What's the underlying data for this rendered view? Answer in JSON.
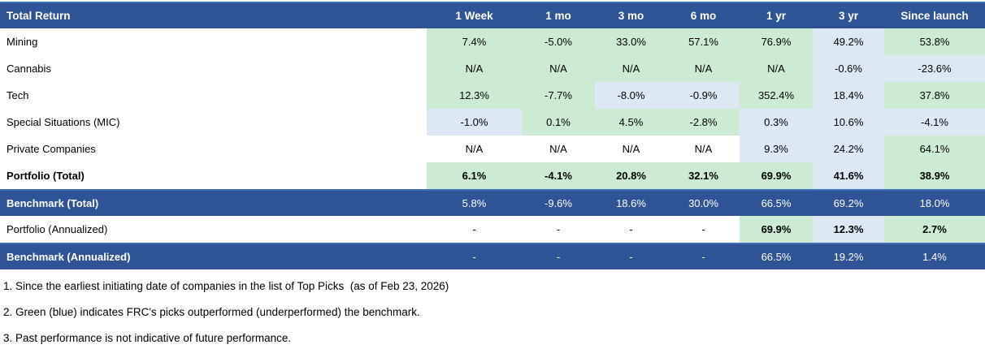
{
  "colors": {
    "header_bg": "#2F5496",
    "accent_line": "#3E6DBA",
    "green": "#CBEBD2",
    "blue": "#DCE9F5",
    "text_light": "#FFFFFF",
    "text_dark": "#000000"
  },
  "table": {
    "title": "Total Return",
    "columns": [
      "1 Week",
      "1 mo",
      "3 mo",
      "6 mo",
      "1 yr",
      "3 yr",
      "Since launch"
    ],
    "rows": [
      {
        "label": "Mining",
        "label_bold": false,
        "dark": false,
        "values": [
          "7.4%",
          "-5.0%",
          "33.0%",
          "57.1%",
          "76.9%",
          "49.2%",
          "53.8%"
        ],
        "fills": [
          "g",
          "g",
          "g",
          "g",
          "g",
          "b",
          "g"
        ]
      },
      {
        "label": "Cannabis",
        "label_bold": false,
        "dark": false,
        "values": [
          "N/A",
          "N/A",
          "N/A",
          "N/A",
          "N/A",
          "-0.6%",
          "-23.6%"
        ],
        "fills": [
          "g",
          "g",
          "g",
          "g",
          "g",
          "b",
          "b"
        ]
      },
      {
        "label": "Tech",
        "label_bold": false,
        "dark": false,
        "values": [
          "12.3%",
          "-7.7%",
          "-8.0%",
          "-0.9%",
          "352.4%",
          "18.4%",
          "37.8%"
        ],
        "fills": [
          "g",
          "g",
          "b",
          "b",
          "g",
          "b",
          "g"
        ]
      },
      {
        "label": "Special Situations (MIC)",
        "label_bold": false,
        "dark": false,
        "values": [
          "-1.0%",
          "0.1%",
          "4.5%",
          "-2.8%",
          "0.3%",
          "10.6%",
          "-4.1%"
        ],
        "fills": [
          "b",
          "g",
          "g",
          "g",
          "b",
          "b",
          "b"
        ]
      },
      {
        "label": "Private Companies",
        "label_bold": false,
        "dark": false,
        "values": [
          "N/A",
          "N/A",
          "N/A",
          "N/A",
          "9.3%",
          "24.2%",
          "64.1%"
        ],
        "fills": [
          "w",
          "w",
          "w",
          "w",
          "b",
          "b",
          "g"
        ]
      },
      {
        "label": "Portfolio (Total)",
        "label_bold": true,
        "dark": false,
        "values": [
          "6.1%",
          "-4.1%",
          "20.8%",
          "32.1%",
          "69.9%",
          "41.6%",
          "38.9%"
        ],
        "fills": [
          "g",
          "g",
          "g",
          "g",
          "g",
          "b",
          "g"
        ],
        "bold": [
          1,
          1,
          1,
          1,
          1,
          1,
          1
        ]
      },
      {
        "label": "Benchmark (Total)",
        "label_bold": true,
        "dark": true,
        "values": [
          "5.8%",
          "-9.6%",
          "18.6%",
          "30.0%",
          "66.5%",
          "69.2%",
          "18.0%"
        ],
        "fills": [
          "d",
          "d",
          "d",
          "d",
          "d",
          "d",
          "d"
        ]
      },
      {
        "label": "Portfolio (Annualized)",
        "label_bold": false,
        "dark": false,
        "values": [
          "-",
          "-",
          "-",
          "-",
          "69.9%",
          "12.3%",
          "2.7%"
        ],
        "fills": [
          "w",
          "w",
          "w",
          "w",
          "g",
          "b",
          "g"
        ],
        "bold": [
          0,
          0,
          0,
          0,
          1,
          1,
          1
        ]
      },
      {
        "label": "Benchmark (Annualized)",
        "label_bold": true,
        "dark": true,
        "values": [
          "-",
          "-",
          "-",
          "-",
          "66.5%",
          "19.2%",
          "1.4%"
        ],
        "fills": [
          "d",
          "d",
          "d",
          "d",
          "d",
          "d",
          "d"
        ]
      }
    ]
  },
  "footnotes": [
    "1. Since the earliest initiating date of companies in the list of Top Picks  (as of Feb 23, 2026)",
    "2. Green (blue) indicates FRC's picks outperformed (underperformed) the benchmark.",
    "3. Past performance is not indicative of future performance."
  ]
}
